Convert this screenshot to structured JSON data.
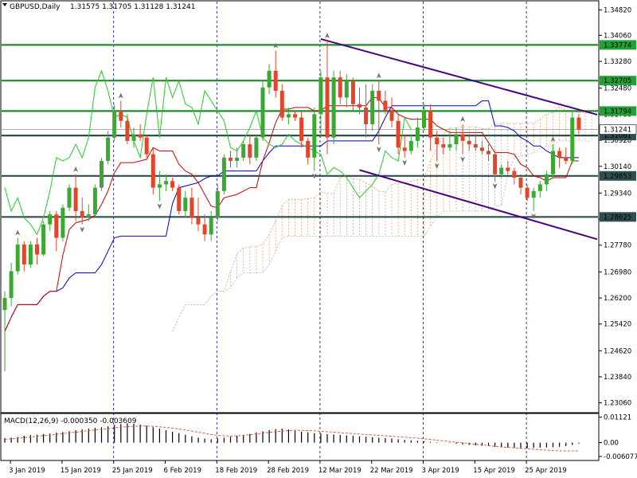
{
  "header": {
    "symbol": "GBPUSD,Daily",
    "ohlc": "1.31575 1.31705 1.31128 1.31241",
    "macd": "MACD(12,26,9) -0.000350 -0.003609"
  },
  "chart_data": {
    "type": "candlestick",
    "title": "GBPUSD,Daily",
    "ylim": [
      1.2279,
      1.3507
    ],
    "price_ticks": [
      "1.34820",
      "1.34060",
      "1.33280",
      "1.32480",
      "1.31700",
      "1.30920",
      "1.30140",
      "1.29340",
      "1.28560",
      "1.27780",
      "1.26980",
      "1.26200",
      "1.25420",
      "1.24620",
      "1.23840",
      "1.23060"
    ],
    "date_labels": [
      "3 Jan 2019",
      "15 Jan 2019",
      "25 Jan 2019",
      "6 Feb 2019",
      "18 Feb 2019",
      "28 Feb 2019",
      "12 Mar 2019",
      "22 Mar 2019",
      "3 Apr 2019",
      "15 Apr 2019",
      "25 Apr 2019"
    ],
    "date_label_bars": [
      1,
      9,
      17,
      25,
      33,
      41,
      49,
      57,
      65,
      73,
      81
    ],
    "horizontal_levels": [
      {
        "label": "1.33774",
        "value": 1.33774,
        "color": "#1f8a2e"
      },
      {
        "label": "1.32705",
        "value": 1.32705,
        "color": "#1f8a2e"
      },
      {
        "label": "1.31794",
        "value": 1.31794,
        "color": "#1f8a2e"
      },
      {
        "label": "1.31061",
        "value": 1.31061,
        "color": "#2f4f4f"
      },
      {
        "label": "1.29853",
        "value": 1.29853,
        "color": "#2f4f4f"
      },
      {
        "label": "1.28625",
        "value": 1.28625,
        "color": "#2f4f4f"
      }
    ],
    "current_price": {
      "label": "1.31241",
      "value": 1.31241
    },
    "trendlines": [
      {
        "name": "upper",
        "from": [
          49,
          1.3395
        ],
        "to": [
          95,
          1.3152
        ],
        "color": "#4b0082"
      },
      {
        "name": "lower",
        "from": [
          55,
          1.3003
        ],
        "to": [
          95,
          1.2778
        ],
        "color": "#4b0082"
      }
    ],
    "candles": [
      [
        1.2584,
        1.264,
        1.24,
        1.262
      ],
      [
        1.262,
        1.2725,
        1.2595,
        1.27
      ],
      [
        1.27,
        1.28,
        1.269,
        1.278
      ],
      [
        1.278,
        1.279,
        1.27,
        1.272
      ],
      [
        1.272,
        1.279,
        1.271,
        1.278
      ],
      [
        1.278,
        1.28,
        1.272,
        1.275
      ],
      [
        1.275,
        1.285,
        1.2745,
        1.284
      ],
      [
        1.284,
        1.288,
        1.282,
        1.287
      ],
      [
        1.287,
        1.288,
        1.276,
        1.28
      ],
      [
        1.28,
        1.29,
        1.279,
        1.289
      ],
      [
        1.289,
        1.296,
        1.288,
        1.295
      ],
      [
        1.295,
        1.299,
        1.285,
        1.288
      ],
      [
        1.288,
        1.292,
        1.284,
        1.286
      ],
      [
        1.286,
        1.29,
        1.285,
        1.287
      ],
      [
        1.287,
        1.296,
        1.286,
        1.295
      ],
      [
        1.295,
        1.304,
        1.294,
        1.303
      ],
      [
        1.303,
        1.312,
        1.302,
        1.31
      ],
      [
        1.31,
        1.32,
        1.309,
        1.318
      ],
      [
        1.318,
        1.321,
        1.313,
        1.315
      ],
      [
        1.315,
        1.317,
        1.308,
        1.309
      ],
      [
        1.309,
        1.313,
        1.307,
        1.311
      ],
      [
        1.311,
        1.314,
        1.309,
        1.31
      ],
      [
        1.31,
        1.311,
        1.304,
        1.305
      ],
      [
        1.305,
        1.307,
        1.293,
        1.295
      ],
      [
        1.295,
        1.3,
        1.291,
        1.296
      ],
      [
        1.296,
        1.299,
        1.294,
        1.297
      ],
      [
        1.297,
        1.298,
        1.294,
        1.295
      ],
      [
        1.295,
        1.296,
        1.287,
        1.288
      ],
      [
        1.288,
        1.294,
        1.286,
        1.292
      ],
      [
        1.292,
        1.295,
        1.284,
        1.286
      ],
      [
        1.286,
        1.292,
        1.282,
        1.284
      ],
      [
        1.284,
        1.287,
        1.279,
        1.281
      ],
      [
        1.281,
        1.288,
        1.279,
        1.286
      ],
      [
        1.286,
        1.296,
        1.285,
        1.294
      ],
      [
        1.294,
        1.305,
        1.293,
        1.304
      ],
      [
        1.304,
        1.306,
        1.301,
        1.303
      ],
      [
        1.303,
        1.307,
        1.301,
        1.304
      ],
      [
        1.304,
        1.309,
        1.303,
        1.308
      ],
      [
        1.308,
        1.311,
        1.302,
        1.304
      ],
      [
        1.304,
        1.311,
        1.303,
        1.31
      ],
      [
        1.31,
        1.327,
        1.309,
        1.325
      ],
      [
        1.325,
        1.332,
        1.323,
        1.33
      ],
      [
        1.33,
        1.336,
        1.322,
        1.324
      ],
      [
        1.324,
        1.326,
        1.315,
        1.316
      ],
      [
        1.316,
        1.319,
        1.314,
        1.317
      ],
      [
        1.317,
        1.318,
        1.315,
        1.316
      ],
      [
        1.316,
        1.318,
        1.307,
        1.309
      ],
      [
        1.309,
        1.31,
        1.302,
        1.304
      ],
      [
        1.304,
        1.319,
        1.3,
        1.317
      ],
      [
        1.317,
        1.33,
        1.31,
        1.328
      ],
      [
        1.328,
        1.339,
        1.305,
        1.31
      ],
      [
        1.31,
        1.33,
        1.308,
        1.328
      ],
      [
        1.328,
        1.33,
        1.32,
        1.322
      ],
      [
        1.322,
        1.329,
        1.319,
        1.327
      ],
      [
        1.327,
        1.328,
        1.318,
        1.32
      ],
      [
        1.32,
        1.325,
        1.317,
        1.319
      ],
      [
        1.319,
        1.326,
        1.31,
        1.314
      ],
      [
        1.314,
        1.326,
        1.312,
        1.324
      ],
      [
        1.324,
        1.327,
        1.308,
        1.321
      ],
      [
        1.321,
        1.324,
        1.317,
        1.318
      ],
      [
        1.318,
        1.322,
        1.313,
        1.315
      ],
      [
        1.315,
        1.317,
        1.305,
        1.307
      ],
      [
        1.307,
        1.311,
        1.304,
        1.306
      ],
      [
        1.306,
        1.311,
        1.305,
        1.309
      ],
      [
        1.309,
        1.316,
        1.307,
        1.313
      ],
      [
        1.313,
        1.32,
        1.312,
        1.318
      ],
      [
        1.318,
        1.32,
        1.306,
        1.31
      ],
      [
        1.31,
        1.312,
        1.303,
        1.308
      ],
      [
        1.308,
        1.31,
        1.305,
        1.307
      ],
      [
        1.307,
        1.312,
        1.306,
        1.308
      ],
      [
        1.308,
        1.313,
        1.306,
        1.311
      ],
      [
        1.311,
        1.314,
        1.305,
        1.309
      ],
      [
        1.309,
        1.311,
        1.306,
        1.308
      ],
      [
        1.308,
        1.311,
        1.306,
        1.307
      ],
      [
        1.307,
        1.309,
        1.305,
        1.306
      ],
      [
        1.306,
        1.308,
        1.303,
        1.305
      ],
      [
        1.305,
        1.306,
        1.297,
        1.299
      ],
      [
        1.299,
        1.302,
        1.298,
        1.301
      ],
      [
        1.301,
        1.303,
        1.299,
        1.3
      ],
      [
        1.3,
        1.301,
        1.296,
        1.298
      ],
      [
        1.298,
        1.299,
        1.293,
        1.295
      ],
      [
        1.295,
        1.296,
        1.291,
        1.292
      ],
      [
        1.292,
        1.295,
        1.288,
        1.294
      ],
      [
        1.294,
        1.297,
        1.292,
        1.296
      ],
      [
        1.296,
        1.3,
        1.294,
        1.299
      ],
      [
        1.299,
        1.308,
        1.298,
        1.306
      ],
      [
        1.306,
        1.307,
        1.301,
        1.304
      ],
      [
        1.304,
        1.307,
        1.302,
        1.303
      ],
      [
        1.303,
        1.318,
        1.302,
        1.316
      ],
      [
        1.316,
        1.317,
        1.311,
        1.3124
      ]
    ],
    "macd": {
      "ylim": [
        -0.0075,
        0.0125
      ],
      "ticks": [
        "0.01121",
        "0.00",
        "-0.006077"
      ],
      "histogram": [
        0.002,
        0.0022,
        0.0025,
        0.003,
        0.0033,
        0.0035,
        0.0038,
        0.004,
        0.0044,
        0.0047,
        0.005,
        0.0055,
        0.0058,
        0.0062,
        0.0065,
        0.0068,
        0.0072,
        0.0078,
        0.0082,
        0.0085,
        0.0083,
        0.008,
        0.0075,
        0.0068,
        0.0062,
        0.0055,
        0.0048,
        0.0042,
        0.0035,
        0.0028,
        0.0022,
        0.0018,
        0.0015,
        0.0018,
        0.0022,
        0.0026,
        0.003,
        0.0034,
        0.0038,
        0.0045,
        0.005,
        0.0055,
        0.006,
        0.0062,
        0.0058,
        0.0052,
        0.0048,
        0.0045,
        0.0042,
        0.004,
        0.0038,
        0.0036,
        0.0034,
        0.0032,
        0.003,
        0.0028,
        0.0026,
        0.0024,
        0.0022,
        0.002,
        0.0018,
        0.0015,
        0.0012,
        0.001,
        0.0008,
        0.0006,
        0.0004,
        0.0002,
        0.0,
        -0.0002,
        -0.0005,
        -0.0008,
        -0.001,
        -0.0012,
        -0.0014,
        -0.0016,
        -0.0018,
        -0.002,
        -0.0022,
        -0.0023,
        -0.0024,
        -0.0024,
        -0.0023,
        -0.0022,
        -0.0021,
        -0.002,
        -0.0018,
        -0.0015,
        -0.001,
        -0.0004
      ],
      "signal": [
        0.0015,
        0.0017,
        0.0019,
        0.0022,
        0.0025,
        0.0028,
        0.0031,
        0.0034,
        0.0037,
        0.004,
        0.0043,
        0.0046,
        0.005,
        0.0053,
        0.0056,
        0.0059,
        0.0062,
        0.0065,
        0.0068,
        0.007,
        0.0072,
        0.0073,
        0.0073,
        0.0072,
        0.007,
        0.0067,
        0.0064,
        0.006,
        0.0056,
        0.0051,
        0.0046,
        0.0041,
        0.0036,
        0.0032,
        0.003,
        0.0029,
        0.003,
        0.0032,
        0.0035,
        0.0038,
        0.0042,
        0.0045,
        0.0048,
        0.0051,
        0.0053,
        0.0054,
        0.0054,
        0.0053,
        0.0052,
        0.005,
        0.0048,
        0.0046,
        0.0044,
        0.0042,
        0.004,
        0.0038,
        0.0036,
        0.0034,
        0.0032,
        0.003,
        0.0028,
        0.0026,
        0.0024,
        0.0022,
        0.002,
        0.0017,
        0.0014,
        0.0011,
        0.0008,
        0.0005,
        0.0002,
        -0.0001,
        -0.0004,
        -0.0007,
        -0.001,
        -0.0013,
        -0.0016,
        -0.0019,
        -0.0021,
        -0.0023,
        -0.0025,
        -0.0027,
        -0.0029,
        -0.0031,
        -0.0033,
        -0.0035,
        -0.0036,
        -0.0036,
        -0.0036,
        -0.0036
      ]
    }
  }
}
